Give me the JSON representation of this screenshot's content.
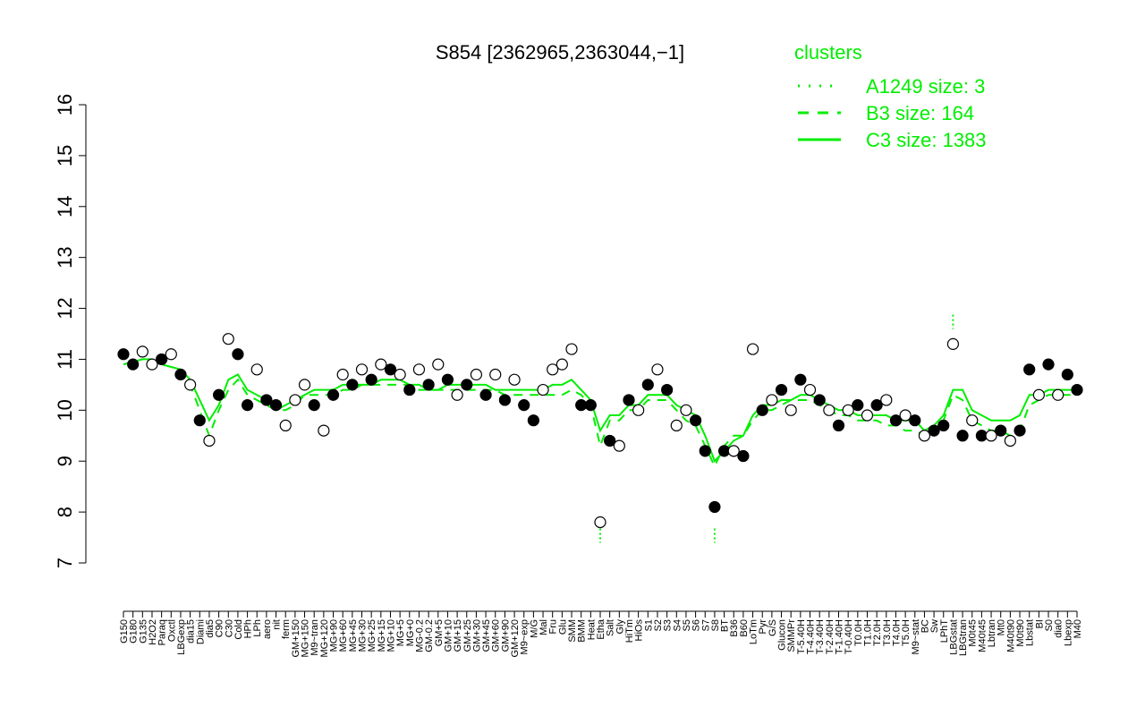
{
  "chart_data": {
    "type": "line",
    "title": "S854 [2362965,2363044,−1]",
    "xlabel": "",
    "ylabel": "",
    "ylim": [
      7,
      16
    ],
    "yticks": [
      7,
      8,
      9,
      10,
      11,
      12,
      13,
      14,
      15,
      16
    ],
    "legend": {
      "title": "clusters",
      "position": "top-right",
      "entries": [
        {
          "label": "A1249 size: 3",
          "style": "dotted"
        },
        {
          "label": "B3 size: 164",
          "style": "dashed"
        },
        {
          "label": "C3 size: 1383",
          "style": "solid"
        }
      ]
    },
    "colors": {
      "lines": "#00ee00",
      "points_filled": "#000000",
      "points_open": "#ffffff"
    },
    "xtick_labels": [
      "G150",
      "G180",
      "G135",
      "H2O2",
      "Paraq",
      "Oxctl",
      "LBGexp",
      "dia15",
      "Diami",
      "dia5",
      "C90",
      "C30",
      "Cold",
      "HPh",
      "LPh",
      "aero",
      "nit",
      "ferm",
      "GM+150",
      "MG+150",
      "M9~tran",
      "MG+120",
      "MG+90",
      "MG+60",
      "MG+45",
      "MG+30",
      "MG+25",
      "MG+15",
      "MG+10",
      "MG+5",
      "MG+0",
      "MG-0.2",
      "GM-0.2",
      "GM+5",
      "GM+10",
      "GM+15",
      "GM+25",
      "GM+30",
      "GM+45",
      "GM+60",
      "GM+90",
      "GM+120",
      "M9~exp",
      "M/G",
      "Mal",
      "Fru",
      "Glu",
      "SMM",
      "BMM",
      "Heat",
      "Etha",
      "Salt",
      "Gly",
      "HiTm",
      "HiOs",
      "S1",
      "S2",
      "S3",
      "S4",
      "S5",
      "S6",
      "S7",
      "S8",
      "BT",
      "B36",
      "B60",
      "LoTm",
      "Pyr",
      "G/S",
      "Glucon",
      "SMMPr",
      "T-5.40H",
      "T-4.40H",
      "T-3.40H",
      "T-2.40H",
      "T-1.40H",
      "T-0.40H",
      "T0.0H",
      "T1.0H",
      "T2.0H",
      "T3.0H",
      "T4.0H",
      "T5.0H",
      "M9~stat",
      "BC",
      "Sw",
      "LPhT",
      "LBGstat",
      "LBGtran",
      "M0t45",
      "M40t45",
      "Lbtran",
      "Mt0",
      "M40t90",
      "M0t90",
      "Lbstat",
      "BI",
      "S0",
      "dia0",
      "Lbexp",
      "M40"
    ],
    "series": [
      {
        "name": "C3 size: 1383",
        "style": "solid",
        "y": [
          10.9,
          10.95,
          11,
          11,
          10.9,
          10.85,
          10.8,
          10.6,
          10.2,
          9.8,
          10.1,
          10.6,
          10.7,
          10.4,
          10.3,
          10.2,
          10,
          10.1,
          10.2,
          10.3,
          10.4,
          10.4,
          10.4,
          10.5,
          10.5,
          10.5,
          10.5,
          10.6,
          10.6,
          10.6,
          10.5,
          10.5,
          10.4,
          10.4,
          10.5,
          10.5,
          10.5,
          10.5,
          10.5,
          10.4,
          10.4,
          10.4,
          10.4,
          10.4,
          10.4,
          10.5,
          10.5,
          10.6,
          10.4,
          10.2,
          9.6,
          9.9,
          9.9,
          10.1,
          10.1,
          10.3,
          10.3,
          10.3,
          10.1,
          10,
          9.9,
          9.5,
          9,
          9.2,
          9.4,
          9.5,
          9.9,
          10.1,
          10.1,
          10.2,
          10.2,
          10.3,
          10.3,
          10.2,
          10.1,
          10,
          10,
          9.9,
          9.9,
          9.9,
          9.9,
          9.8,
          9.8,
          9.8,
          9.6,
          9.7,
          9.9,
          10.4,
          10.4,
          10,
          9.9,
          9.8,
          9.8,
          9.8,
          9.9,
          10.3,
          10.3,
          10.4,
          10.4,
          10.4,
          10.4
        ]
      },
      {
        "name": "B3 size: 164",
        "style": "dashed",
        "y": [
          null,
          null,
          null,
          null,
          null,
          null,
          10.8,
          10.5,
          10,
          9.5,
          10,
          10.4,
          10.6,
          10.3,
          10.2,
          10.1,
          10,
          10,
          10.1,
          10.3,
          10.3,
          10.3,
          10.3,
          10.4,
          10.4,
          10.5,
          10.5,
          10.5,
          10.5,
          10.5,
          10.5,
          10.4,
          10.4,
          10.4,
          10.4,
          10.4,
          10.4,
          10.4,
          10.4,
          10.4,
          10.3,
          10.3,
          10.3,
          10.3,
          10.3,
          10.3,
          10.3,
          10.4,
          10.3,
          10.1,
          9.3,
          9.8,
          9.8,
          10,
          10,
          10.2,
          10.2,
          10.2,
          10,
          9.8,
          9.7,
          9.3,
          8.9,
          9.3,
          9.5,
          9.5,
          9.8,
          10,
          10,
          10.1,
          10.2,
          10.2,
          10.2,
          10.1,
          10,
          9.9,
          9.9,
          9.8,
          9.8,
          9.8,
          9.7,
          9.7,
          9.6,
          9.6,
          9.5,
          9.5,
          9.8,
          10.3,
          10.2,
          9.8,
          9.7,
          9.6,
          9.6,
          9.5,
          9.6,
          10.1,
          10.2,
          10.3,
          10.3,
          10.3,
          10.3
        ]
      },
      {
        "name": "A1249 size: 3",
        "style": "dotted",
        "y": [
          null,
          null,
          null,
          null,
          null,
          null,
          null,
          null,
          null,
          null,
          null,
          null,
          null,
          null,
          null,
          null,
          null,
          null,
          null,
          null,
          null,
          null,
          null,
          null,
          null,
          null,
          null,
          null,
          null,
          null,
          null,
          null,
          null,
          null,
          null,
          null,
          null,
          null,
          null,
          null,
          null,
          null,
          null,
          null,
          null,
          null,
          null,
          null,
          null,
          null,
          7.5,
          null,
          null,
          null,
          null,
          null,
          null,
          null,
          null,
          null,
          null,
          null,
          7.5,
          null,
          null,
          null,
          null,
          null,
          null,
          null,
          null,
          null,
          null,
          null,
          null,
          null,
          null,
          null,
          null,
          null,
          null,
          null,
          null,
          null,
          null,
          null,
          null,
          11.7,
          null,
          null,
          null,
          null,
          null,
          null,
          null,
          null,
          null,
          null,
          null,
          null,
          null
        ]
      }
    ],
    "points_y": [
      11.1,
      10.9,
      11.15,
      10.9,
      11.0,
      11.1,
      10.7,
      10.5,
      9.8,
      9.4,
      10.3,
      11.4,
      11.1,
      10.1,
      10.8,
      10.2,
      10.1,
      9.7,
      10.2,
      10.5,
      10.1,
      9.6,
      10.3,
      10.7,
      10.5,
      10.8,
      10.6,
      10.9,
      10.8,
      10.7,
      10.4,
      10.8,
      10.5,
      10.9,
      10.6,
      10.3,
      10.5,
      10.7,
      10.3,
      10.7,
      10.2,
      10.6,
      10.1,
      9.8,
      10.4,
      10.8,
      10.9,
      11.2,
      10.1,
      10.1,
      7.8,
      9.4,
      9.3,
      10.2,
      10.0,
      10.5,
      10.8,
      10.4,
      9.7,
      10.0,
      9.8,
      9.2,
      8.1,
      9.2,
      9.2,
      9.1,
      11.2,
      10.0,
      10.2,
      10.4,
      10.0,
      10.6,
      10.4,
      10.2,
      10.0,
      9.7,
      10.0,
      10.1,
      9.9,
      10.1,
      10.2,
      9.8,
      9.9,
      9.8,
      9.5,
      9.6,
      9.7,
      11.3,
      9.5,
      9.8,
      9.5,
      9.5,
      9.6,
      9.4,
      9.6,
      10.8,
      10.3,
      10.9,
      10.3,
      10.7,
      10.4
    ],
    "points_filled": [
      true,
      true,
      false,
      false,
      true,
      false,
      true,
      false,
      true,
      false,
      true,
      false,
      true,
      true,
      false,
      true,
      true,
      false,
      false,
      false,
      true,
      false,
      true,
      false,
      true,
      false,
      true,
      false,
      true,
      false,
      true,
      false,
      true,
      false,
      true,
      false,
      true,
      false,
      true,
      false,
      true,
      false,
      true,
      true,
      false,
      false,
      false,
      false,
      true,
      true,
      false,
      true,
      false,
      true,
      false,
      true,
      false,
      true,
      false,
      false,
      true,
      true,
      true,
      true,
      false,
      true,
      false,
      true,
      false,
      true,
      false,
      true,
      false,
      true,
      false,
      true,
      false,
      true,
      false,
      true,
      false,
      true,
      false,
      true,
      false,
      true,
      true,
      false,
      true,
      false,
      true,
      false,
      true,
      false,
      true,
      true,
      false,
      true,
      false,
      true,
      true
    ]
  }
}
